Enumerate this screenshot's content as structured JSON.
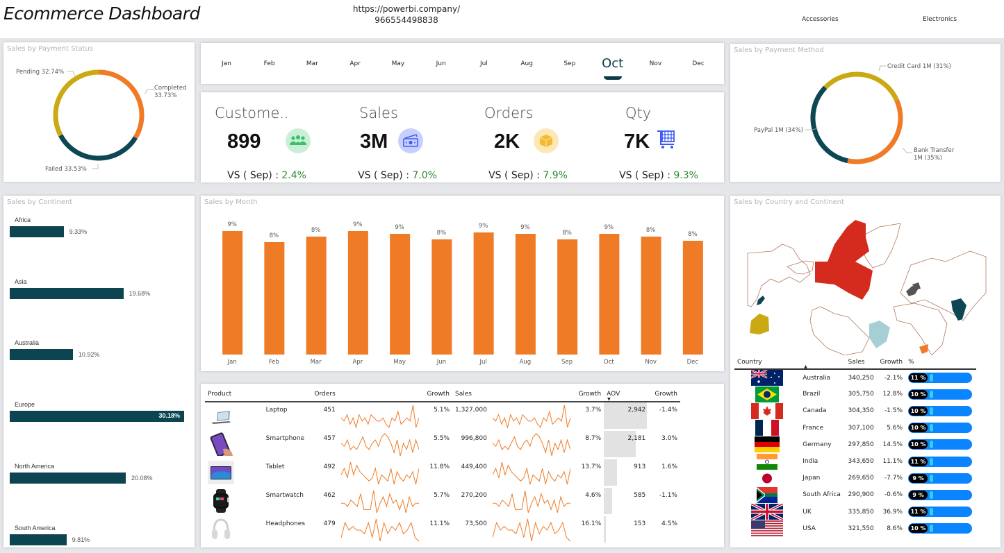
{
  "header": {
    "title": "Ecommerce Dashboard",
    "url_line1": "https://powerbi.company/",
    "url_line2": "966554498838",
    "category_buttons": [
      "Accessories",
      "Electronics"
    ]
  },
  "payment_status": {
    "title": "Sales by Payment Status",
    "slices": [
      {
        "label": "Completed",
        "value": 33.73,
        "text": "Completed",
        "pct_text": "33.73%",
        "color": "#f07b26"
      },
      {
        "label": "Failed",
        "value": 33.53,
        "text": "Failed 33.53%",
        "color": "#0d4753"
      },
      {
        "label": "Pending",
        "value": 32.74,
        "text": "Pending 32.74%",
        "color": "#cba913"
      }
    ]
  },
  "month_slicer": {
    "months": [
      "Jan",
      "Feb",
      "Mar",
      "Apr",
      "May",
      "Jun",
      "Jul",
      "Aug",
      "Sep",
      "Oct",
      "Nov",
      "Dec"
    ],
    "selected": "Oct"
  },
  "kpis": [
    {
      "label": "Custome..",
      "value": "899",
      "vs_label": "VS ( Sep) : ",
      "vs_pct": "2.4%",
      "icon": "customers-icon"
    },
    {
      "label": "Sales",
      "value": "3M",
      "vs_label": "VS ( Sep) : ",
      "vs_pct": "7.0%",
      "icon": "money-icon"
    },
    {
      "label": "Orders",
      "value": "2K",
      "vs_label": "VS ( Sep) : ",
      "vs_pct": "7.9%",
      "icon": "box-icon"
    },
    {
      "label": "Qty",
      "value": "7K",
      "vs_label": "VS ( Sep) : ",
      "vs_pct": "9.3%",
      "icon": "cart-icon"
    }
  ],
  "payment_method": {
    "title": "Sales by Payment Method",
    "slices": [
      {
        "label": "Credit Card",
        "value": 31,
        "text": "Credit Card 1M (31%)",
        "color": "#cba913"
      },
      {
        "label": "Bank Transfer",
        "value": 35,
        "text": "Bank Transfer",
        "text2": "1M (35%)",
        "color": "#f07b26"
      },
      {
        "label": "PayPal",
        "value": 34,
        "text": "PayPal 1M (34%)",
        "color": "#0d4753"
      }
    ]
  },
  "continent": {
    "title": "Sales by Continent",
    "items": [
      {
        "name": "Africa",
        "value": 9.33,
        "label": "9.33%"
      },
      {
        "name": "Asia",
        "value": 19.68,
        "label": "19.68%"
      },
      {
        "name": "Australia",
        "value": 10.92,
        "label": "10.92%"
      },
      {
        "name": "Europe",
        "value": 30.18,
        "label": "30.18%"
      },
      {
        "name": "North America",
        "value": 20.08,
        "label": "20.08%"
      },
      {
        "name": "South America",
        "value": 9.81,
        "label": "9.81%"
      }
    ]
  },
  "chart_data": {
    "type": "bar",
    "title": "Sales by Month",
    "categories": [
      "Jan",
      "Feb",
      "Mar",
      "Apr",
      "May",
      "Jun",
      "Jul",
      "Aug",
      "Sep",
      "Oct",
      "Nov",
      "Dec"
    ],
    "values": [
      8.9,
      8.1,
      8.5,
      8.9,
      8.7,
      8.3,
      8.8,
      8.7,
      8.3,
      8.7,
      8.5,
      8.2
    ],
    "labels": [
      "9%",
      "8%",
      "8%",
      "9%",
      "9%",
      "8%",
      "9%",
      "9%",
      "8%",
      "9%",
      "8%",
      "8%"
    ],
    "xlabel": "",
    "ylabel": "",
    "ylim": [
      0,
      9.2
    ],
    "color": "#f07b26",
    "grid": false
  },
  "products": {
    "headers": [
      "Product",
      "Orders",
      "Growth",
      "Sales",
      "Growth",
      "AOV",
      "Growth"
    ],
    "rows": [
      {
        "name": "Laptop",
        "orders": "451",
        "orders_growth": "5.1%",
        "sales": "1,327,000",
        "sales_growth": "3.7%",
        "aov": "2,942",
        "aov_value": 2942,
        "aov_growth": "-1.4%",
        "aov_growth_neg": true,
        "orders_spark": [
          5,
          4,
          6,
          3,
          5,
          2,
          6,
          4,
          5,
          3,
          6,
          5,
          4,
          4,
          5,
          3,
          2,
          5,
          4,
          7,
          3,
          4,
          5,
          4,
          9,
          2,
          5
        ],
        "sales_spark": [
          5,
          4,
          6,
          3,
          5,
          2,
          6,
          4,
          5,
          3,
          6,
          5,
          4,
          4,
          5,
          3,
          2,
          5,
          4,
          7,
          3,
          4,
          5,
          4,
          9,
          2,
          5
        ]
      },
      {
        "name": "Smartphone",
        "orders": "457",
        "orders_growth": "5.5%",
        "sales": "996,800",
        "sales_growth": "8.7%",
        "aov": "2,181",
        "aov_value": 2181,
        "aov_growth": "3.0%",
        "aov_growth_neg": false,
        "orders_spark": [
          6,
          5,
          7,
          4,
          5,
          4,
          6,
          8,
          5,
          4,
          6,
          7,
          5,
          8,
          9,
          8,
          6,
          3,
          7,
          2,
          6,
          4,
          7,
          3,
          7,
          4
        ],
        "sales_spark": [
          6,
          5,
          7,
          4,
          5,
          4,
          6,
          8,
          5,
          4,
          6,
          7,
          5,
          8,
          9,
          8,
          6,
          3,
          7,
          2,
          6,
          4,
          7,
          3,
          7,
          4
        ]
      },
      {
        "name": "Tablet",
        "orders": "492",
        "orders_growth": "11.8%",
        "sales": "449,400",
        "sales_growth": "13.7%",
        "aov": "913",
        "aov_value": 913,
        "aov_growth": "1.6%",
        "aov_growth_neg": false,
        "orders_spark": [
          5,
          7,
          4,
          9,
          5,
          8,
          6,
          5,
          4,
          3,
          4,
          7,
          2,
          5,
          4,
          3,
          7,
          2,
          6,
          4,
          3,
          5,
          4,
          6,
          2,
          7
        ],
        "sales_spark": [
          5,
          7,
          4,
          9,
          5,
          8,
          6,
          5,
          4,
          3,
          4,
          7,
          2,
          5,
          4,
          3,
          7,
          2,
          6,
          4,
          3,
          5,
          4,
          6,
          2,
          7
        ]
      },
      {
        "name": "Smartwatch",
        "orders": "462",
        "orders_growth": "5.7%",
        "sales": "270,200",
        "sales_growth": "4.6%",
        "aov": "585",
        "aov_value": 585,
        "aov_growth": "-1.1%",
        "aov_growth_neg": true,
        "orders_spark": [
          5,
          5,
          4,
          6,
          5,
          4,
          8,
          3,
          3,
          3,
          9,
          2,
          5,
          7,
          4,
          8,
          5,
          6,
          3,
          6,
          2,
          7,
          4,
          5,
          5
        ],
        "sales_spark": [
          5,
          5,
          4,
          6,
          5,
          4,
          8,
          3,
          3,
          3,
          9,
          2,
          5,
          7,
          4,
          8,
          5,
          6,
          3,
          6,
          2,
          7,
          4,
          5,
          5
        ]
      },
      {
        "name": "Headphones",
        "orders": "479",
        "orders_growth": "11.1%",
        "sales": "73,500",
        "sales_growth": "16.1%",
        "aov": "153",
        "aov_value": 153,
        "aov_growth": "4.5%",
        "aov_growth_neg": false,
        "orders_spark": [
          4,
          8,
          6,
          7,
          6,
          6,
          5,
          8,
          4,
          9,
          3,
          8,
          5,
          7,
          6,
          8,
          5,
          6,
          8,
          4,
          3
        ],
        "sales_spark": [
          4,
          8,
          6,
          7,
          6,
          6,
          5,
          8,
          4,
          9,
          3,
          8,
          5,
          7,
          6,
          8,
          5,
          6,
          8,
          4,
          3
        ]
      }
    ]
  },
  "country": {
    "title": "Sales by Country and Continent",
    "headers": [
      "Country",
      "Sales",
      "Growth",
      "%"
    ],
    "rows": [
      {
        "name": "Australia",
        "flag": "australia-flag",
        "sales": "340,250",
        "growth": "-2.1%",
        "neg": true,
        "pct": "11 %"
      },
      {
        "name": "Brazil",
        "flag": "brazil-flag",
        "sales": "305,750",
        "growth": "12.8%",
        "neg": false,
        "pct": "10 %"
      },
      {
        "name": "Canada",
        "flag": "canada-flag",
        "sales": "304,350",
        "growth": "-1.5%",
        "neg": true,
        "pct": "10 %"
      },
      {
        "name": "France",
        "flag": "france-flag",
        "sales": "307,100",
        "growth": "5.6%",
        "neg": false,
        "pct": "10 %"
      },
      {
        "name": "Germany",
        "flag": "germany-flag",
        "sales": "297,850",
        "growth": "14.5%",
        "neg": false,
        "pct": "10 %"
      },
      {
        "name": "India",
        "flag": "india-flag",
        "sales": "343,650",
        "growth": "11.1%",
        "neg": false,
        "pct": "11 %"
      },
      {
        "name": "Japan",
        "flag": "japan-flag",
        "sales": "269,650",
        "growth": "-7.7%",
        "neg": true,
        "pct": "9 %"
      },
      {
        "name": "South Africa",
        "flag": "south-africa-flag",
        "sales": "290,900",
        "growth": "-0.6%",
        "neg": true,
        "pct": "9 %"
      },
      {
        "name": "UK",
        "flag": "uk-flag",
        "sales": "335,850",
        "growth": "36.9%",
        "neg": false,
        "pct": "11 %"
      },
      {
        "name": "USA",
        "flag": "usa-flag",
        "sales": "321,550",
        "growth": "8.6%",
        "neg": false,
        "pct": "10 %"
      }
    ]
  }
}
